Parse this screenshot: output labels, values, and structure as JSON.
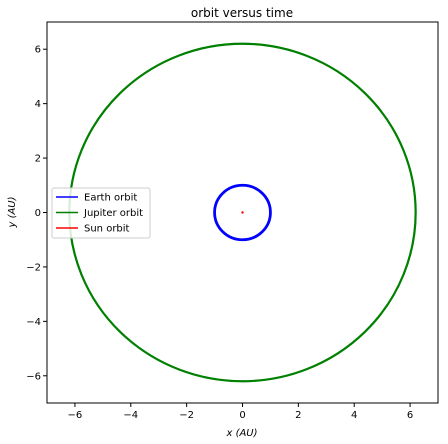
{
  "chart_data": {
    "type": "line",
    "title": "orbit versus time",
    "xlabel": "x (AU)",
    "ylabel": "y (AU)",
    "xlim": [
      -7,
      7
    ],
    "ylim": [
      -7,
      7
    ],
    "xticks": [
      -6,
      -4,
      -2,
      0,
      2,
      4,
      6
    ],
    "yticks": [
      -6,
      -4,
      -2,
      0,
      2,
      4,
      6
    ],
    "xtick_labels": [
      "−6",
      "−4",
      "−2",
      "0",
      "2",
      "4",
      "6"
    ],
    "ytick_labels": [
      "−6",
      "−4",
      "−2",
      "0",
      "2",
      "4",
      "6"
    ],
    "grid": false,
    "legend_position": "center-left",
    "series": [
      {
        "name": "Earth orbit",
        "color": "#0000ff",
        "shape": "circle",
        "center": [
          0,
          0
        ],
        "radius": 1.0,
        "ring_spread": 0.06
      },
      {
        "name": "Jupiter orbit",
        "color": "#008000",
        "shape": "circle",
        "center": [
          0,
          0
        ],
        "radius": 6.2,
        "ring_spread": 0.04
      },
      {
        "name": "Sun orbit",
        "color": "#ff0000",
        "shape": "circle",
        "center": [
          0,
          0
        ],
        "radius": 0.006,
        "ring_spread": 0.0
      }
    ]
  }
}
